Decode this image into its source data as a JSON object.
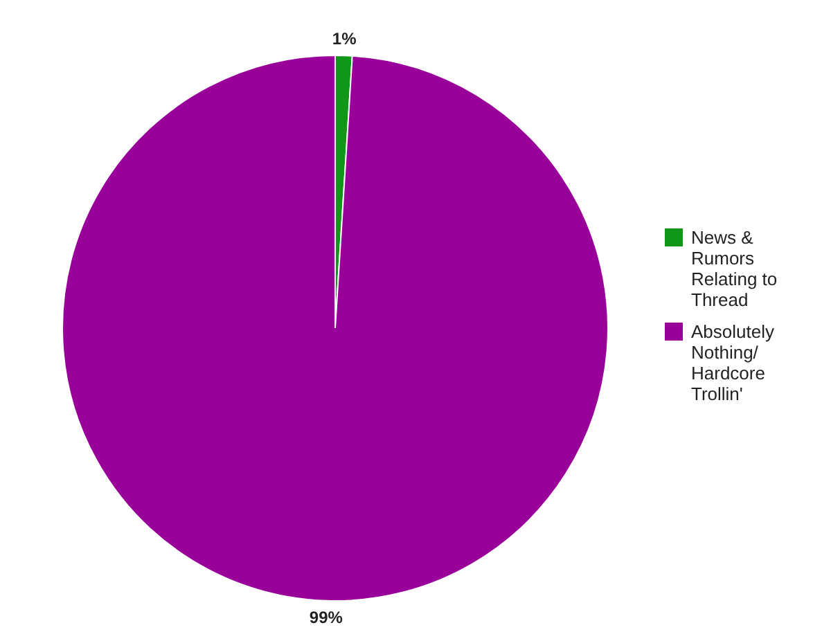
{
  "chart_data": {
    "type": "pie",
    "categories": [
      "News & Rumors Relating to Thread",
      "Absolutely Nothing/ Hardcore Trollin'"
    ],
    "values": [
      1,
      99
    ],
    "colors": [
      "#109618",
      "#990099"
    ],
    "value_labels": [
      "1%",
      "99%"
    ],
    "legend": "right"
  }
}
